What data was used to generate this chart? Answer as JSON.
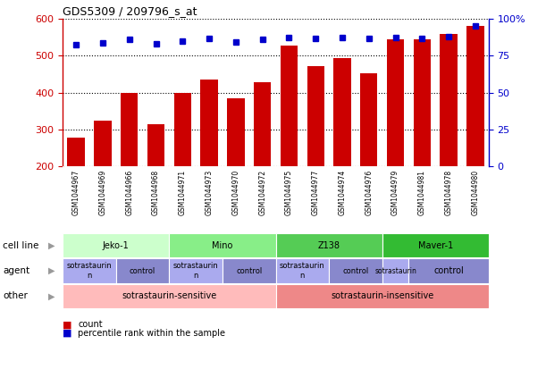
{
  "title": "GDS5309 / 209796_s_at",
  "samples": [
    "GSM1044967",
    "GSM1044969",
    "GSM1044966",
    "GSM1044968",
    "GSM1044971",
    "GSM1044973",
    "GSM1044970",
    "GSM1044972",
    "GSM1044975",
    "GSM1044977",
    "GSM1044974",
    "GSM1044976",
    "GSM1044979",
    "GSM1044981",
    "GSM1044978",
    "GSM1044980"
  ],
  "counts": [
    278,
    325,
    399,
    315,
    399,
    436,
    385,
    429,
    527,
    471,
    493,
    452,
    544,
    544,
    560,
    580
  ],
  "percentile_values": [
    530,
    535,
    545,
    533,
    540,
    546,
    538,
    545,
    550,
    547,
    550,
    547,
    550,
    547,
    553,
    581
  ],
  "ylim_left": [
    200,
    600
  ],
  "ylim_right": [
    0,
    100
  ],
  "yticks_left": [
    200,
    300,
    400,
    500,
    600
  ],
  "yticks_right": [
    0,
    25,
    50,
    75,
    100
  ],
  "bar_color": "#cc0000",
  "dot_color": "#0000cc",
  "plot_bg_color": "#ffffff",
  "xtick_bg_color": "#cccccc",
  "cell_lines": [
    {
      "label": "Jeko-1",
      "start": 0,
      "end": 4,
      "color": "#ccffcc"
    },
    {
      "label": "Mino",
      "start": 4,
      "end": 8,
      "color": "#88ee88"
    },
    {
      "label": "Z138",
      "start": 8,
      "end": 12,
      "color": "#55cc55"
    },
    {
      "label": "Maver-1",
      "start": 12,
      "end": 16,
      "color": "#33bb33"
    }
  ],
  "agents": [
    {
      "label": "sotrastaurin\nn",
      "start": 0,
      "end": 2,
      "color": "#aaaaee"
    },
    {
      "label": "control",
      "start": 2,
      "end": 4,
      "color": "#8888cc"
    },
    {
      "label": "sotrastaurin\nn",
      "start": 4,
      "end": 6,
      "color": "#aaaaee"
    },
    {
      "label": "control",
      "start": 6,
      "end": 8,
      "color": "#8888cc"
    },
    {
      "label": "sotrastaurin\nn",
      "start": 8,
      "end": 10,
      "color": "#aaaaee"
    },
    {
      "label": "control",
      "start": 10,
      "end": 12,
      "color": "#8888cc"
    },
    {
      "label": "sotrastaurin",
      "start": 12,
      "end": 13,
      "color": "#aaaaee"
    },
    {
      "label": "control",
      "start": 13,
      "end": 16,
      "color": "#8888cc"
    }
  ],
  "others": [
    {
      "label": "sotrastaurin-sensitive",
      "start": 0,
      "end": 8,
      "color": "#ffbbbb"
    },
    {
      "label": "sotrastaurin-insensitive",
      "start": 8,
      "end": 16,
      "color": "#ee8888"
    }
  ],
  "row_labels": [
    "cell line",
    "agent",
    "other"
  ],
  "legend_items": [
    {
      "color": "#cc0000",
      "label": "count"
    },
    {
      "color": "#0000cc",
      "label": "percentile rank within the sample"
    }
  ]
}
